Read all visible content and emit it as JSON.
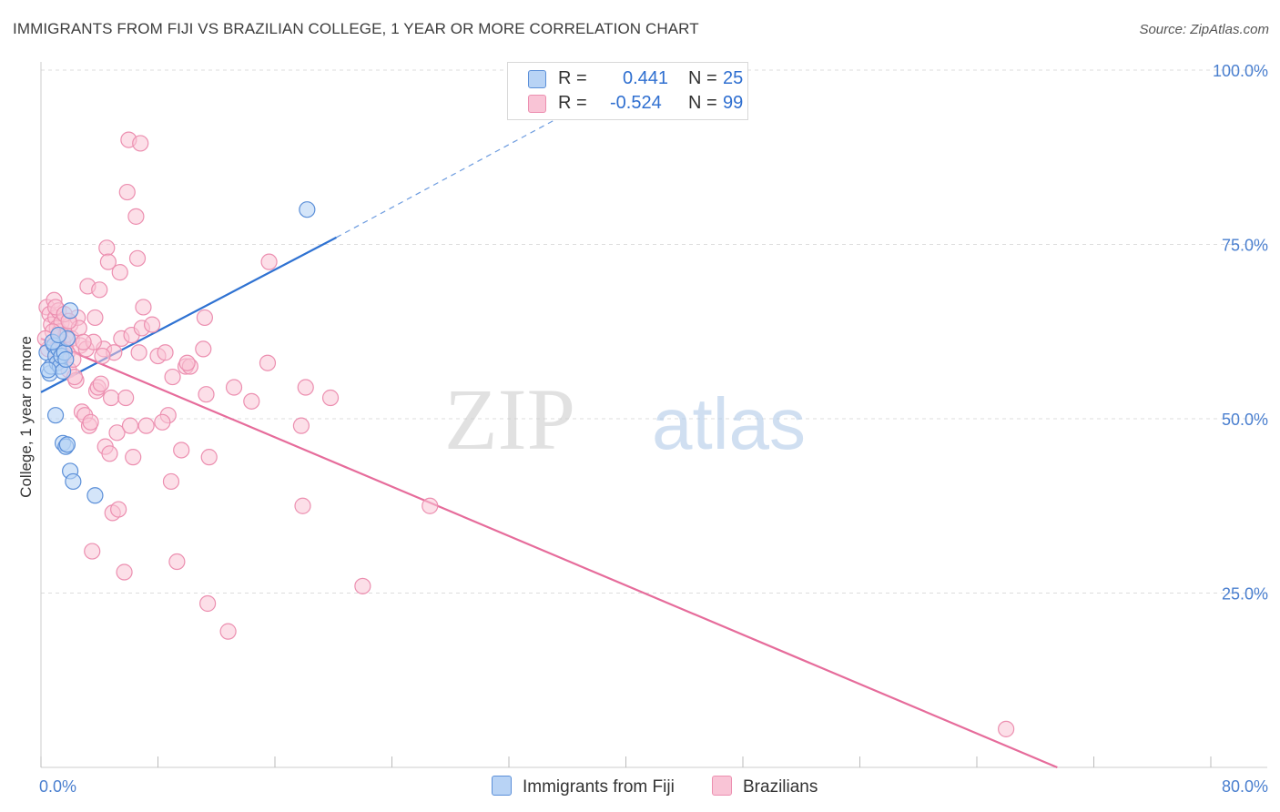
{
  "title": "IMMIGRANTS FROM FIJI VS BRAZILIAN COLLEGE, 1 YEAR OR MORE CORRELATION CHART",
  "source": "Source: ZipAtlas.com",
  "watermark": {
    "zip": "ZIP",
    "atlas": "atlas"
  },
  "legend": {
    "fiji": {
      "r_label": "R =",
      "r_value": "0.441",
      "n_label": "N =",
      "n_value": "25"
    },
    "brazil": {
      "r_label": "R =",
      "r_value": "-0.524",
      "n_label": "N =",
      "n_value": "99"
    }
  },
  "colors": {
    "fiji_fill": "#b8d3f5",
    "fiji_stroke": "#5b8fd8",
    "fiji_line": "#2f72d2",
    "brazil_fill": "#f9c4d6",
    "brazil_stroke": "#ec8fb0",
    "brazil_line": "#e66c9b",
    "tick_label": "#4a7fcf",
    "grid": "#dddddd"
  },
  "chart_data": {
    "type": "scatter",
    "title": "IMMIGRANTS FROM FIJI VS BRAZILIAN COLLEGE, 1 YEAR OR MORE CORRELATION CHART",
    "xlabel": "",
    "ylabel": "College, 1 year or more",
    "xlim": [
      0,
      80
    ],
    "ylim": [
      0,
      103
    ],
    "x_tick_labels": [
      "0.0%",
      "80.0%"
    ],
    "y_ticks": [
      25,
      50,
      75,
      100
    ],
    "y_tick_labels": [
      "25.0%",
      "50.0%",
      "75.0%",
      "100.0%"
    ],
    "grid": true,
    "legend_position": "top-center",
    "series": [
      {
        "name": "Immigrants from Fiji",
        "points": [
          [
            0.4,
            59.5
          ],
          [
            0.6,
            56.5
          ],
          [
            0.7,
            57.5
          ],
          [
            0.9,
            60.5
          ],
          [
            1.0,
            59.0
          ],
          [
            1.1,
            58.0
          ],
          [
            1.2,
            60.0
          ],
          [
            1.3,
            57.5
          ],
          [
            1.4,
            59.0
          ],
          [
            1.5,
            56.8
          ],
          [
            1.6,
            59.5
          ],
          [
            1.7,
            58.5
          ],
          [
            1.8,
            61.5
          ],
          [
            2.0,
            65.5
          ],
          [
            0.8,
            61.0
          ],
          [
            1.0,
            50.5
          ],
          [
            1.5,
            46.5
          ],
          [
            1.7,
            46.0
          ],
          [
            1.8,
            46.3
          ],
          [
            2.0,
            42.5
          ],
          [
            2.2,
            41.0
          ],
          [
            3.7,
            39.0
          ],
          [
            18.2,
            80.0
          ],
          [
            0.5,
            57.0
          ],
          [
            1.2,
            62.0
          ]
        ],
        "trend": {
          "x0": 0,
          "y0": 53.8,
          "x1": 20.2,
          "y1": 76.0,
          "dashed_to_x": 37.3,
          "dashed_to_y": 95.3
        }
      },
      {
        "name": "Brazilians",
        "points": [
          [
            0.4,
            66.0
          ],
          [
            0.6,
            65.0
          ],
          [
            0.7,
            63.5
          ],
          [
            0.9,
            67.0
          ],
          [
            1.0,
            64.5
          ],
          [
            1.1,
            63.0
          ],
          [
            1.2,
            65.5
          ],
          [
            1.3,
            62.5
          ],
          [
            1.4,
            63.8
          ],
          [
            1.5,
            61.0
          ],
          [
            1.6,
            60.0
          ],
          [
            1.7,
            62.0
          ],
          [
            1.8,
            59.5
          ],
          [
            1.9,
            57.0
          ],
          [
            2.0,
            63.5
          ],
          [
            2.1,
            61.5
          ],
          [
            2.2,
            58.5
          ],
          [
            2.4,
            55.5
          ],
          [
            2.5,
            64.5
          ],
          [
            2.7,
            60.5
          ],
          [
            2.8,
            51.0
          ],
          [
            3.0,
            50.5
          ],
          [
            3.1,
            60.0
          ],
          [
            3.2,
            69.0
          ],
          [
            3.3,
            49.0
          ],
          [
            3.4,
            49.5
          ],
          [
            3.5,
            31.0
          ],
          [
            3.7,
            64.5
          ],
          [
            3.8,
            54.0
          ],
          [
            3.9,
            54.5
          ],
          [
            4.0,
            68.5
          ],
          [
            4.1,
            55.0
          ],
          [
            4.3,
            60.0
          ],
          [
            4.4,
            46.0
          ],
          [
            4.5,
            74.5
          ],
          [
            4.6,
            72.5
          ],
          [
            4.7,
            45.0
          ],
          [
            4.8,
            53.0
          ],
          [
            4.9,
            36.5
          ],
          [
            5.0,
            59.5
          ],
          [
            5.2,
            48.0
          ],
          [
            5.3,
            37.0
          ],
          [
            5.4,
            71.0
          ],
          [
            5.5,
            61.5
          ],
          [
            5.7,
            28.0
          ],
          [
            5.9,
            82.5
          ],
          [
            6.0,
            90.0
          ],
          [
            6.1,
            49.0
          ],
          [
            6.2,
            62.0
          ],
          [
            6.3,
            44.5
          ],
          [
            6.5,
            79.0
          ],
          [
            6.6,
            73.0
          ],
          [
            6.8,
            89.5
          ],
          [
            6.9,
            63.0
          ],
          [
            7.0,
            66.0
          ],
          [
            7.2,
            49.0
          ],
          [
            7.6,
            63.5
          ],
          [
            8.0,
            59.0
          ],
          [
            8.5,
            59.5
          ],
          [
            8.7,
            50.5
          ],
          [
            8.9,
            41.0
          ],
          [
            9.0,
            56.0
          ],
          [
            9.3,
            29.5
          ],
          [
            9.6,
            45.5
          ],
          [
            9.9,
            57.5
          ],
          [
            10.2,
            57.5
          ],
          [
            11.1,
            60.0
          ],
          [
            11.2,
            64.5
          ],
          [
            11.3,
            53.5
          ],
          [
            11.4,
            23.5
          ],
          [
            11.5,
            44.5
          ],
          [
            12.8,
            19.5
          ],
          [
            13.2,
            54.5
          ],
          [
            14.4,
            52.5
          ],
          [
            15.5,
            58.0
          ],
          [
            15.6,
            72.5
          ],
          [
            17.8,
            49.0
          ],
          [
            17.9,
            37.5
          ],
          [
            18.1,
            54.5
          ],
          [
            19.8,
            53.0
          ],
          [
            22.0,
            26.0
          ],
          [
            26.6,
            37.5
          ],
          [
            0.5,
            60.0
          ],
          [
            0.8,
            62.5
          ],
          [
            1.0,
            66.0
          ],
          [
            1.3,
            58.5
          ],
          [
            1.6,
            65.0
          ],
          [
            2.3,
            56.0
          ],
          [
            2.6,
            63.0
          ],
          [
            3.6,
            61.0
          ],
          [
            4.2,
            59.0
          ],
          [
            2.9,
            61.0
          ],
          [
            6.7,
            59.5
          ],
          [
            8.3,
            49.5
          ],
          [
            10.0,
            58.0
          ],
          [
            5.8,
            53.0
          ],
          [
            0.3,
            61.5
          ],
          [
            1.9,
            64.0
          ],
          [
            66.0,
            5.5
          ]
        ],
        "trend": {
          "x0": 0,
          "y0": 61.5,
          "x1": 69.5,
          "y1": 0
        }
      }
    ]
  },
  "bottom_legend": {
    "fiji": "Immigrants from Fiji",
    "brazil": "Brazilians"
  }
}
